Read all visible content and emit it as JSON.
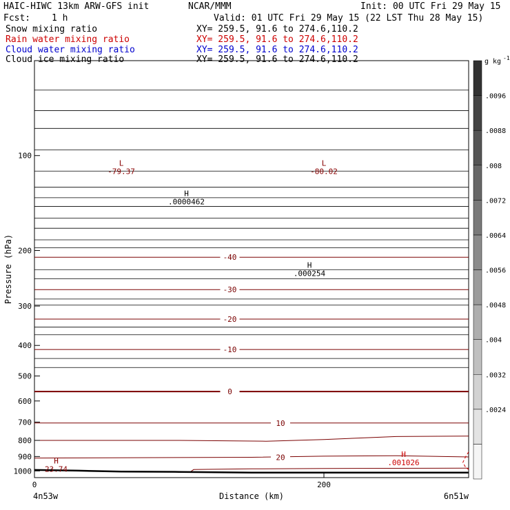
{
  "header": {
    "title_left": "HAIC-HIWC 13km ARW-GFS init",
    "org": "NCAR/MMM",
    "init": "Init: 00 UTC Fri 29 May 15",
    "fcst_label": "Fcst:",
    "fcst_value": "1 h",
    "valid": "Valid: 01 UTC Fri 29 May 15 (22 LST Thu 28 May 15)",
    "fields": [
      {
        "name": "Snow mixing ratio",
        "xy": "XY= 259.5, 91.6 to 274.6,110.2",
        "color": "#000000"
      },
      {
        "name": "Rain water mixing ratio",
        "xy": "XY= 259.5, 91.6 to 274.6,110.2",
        "color": "#cc0000"
      },
      {
        "name": "Cloud water mixing ratio",
        "xy": "XY= 259.5, 91.6 to 274.6,110.2",
        "color": "#0000cc"
      },
      {
        "name": "Cloud ice mixing ratio",
        "xy": "XY= 259.5, 91.6 to 274.6,110.2",
        "color": "#000000"
      }
    ]
  },
  "chart_data": {
    "type": "line",
    "xlabel": "Distance (km)",
    "ylabel": "Pressure (hPa)",
    "xlim": [
      0,
      300
    ],
    "ylim": [
      1050,
      50
    ],
    "y_scale": "log",
    "x_ticks": [
      0,
      200
    ],
    "x_end_labels": [
      "4n53w",
      "6n51w"
    ],
    "y_ticks": [
      100,
      200,
      300,
      400,
      500,
      600,
      700,
      800,
      900,
      1000
    ],
    "temperature_contours": [
      {
        "label": "-40",
        "points": [
          [
            0,
            210
          ],
          [
            300,
            210
          ]
        ]
      },
      {
        "label": "-30",
        "points": [
          [
            0,
            266
          ],
          [
            300,
            266
          ]
        ]
      },
      {
        "label": "-20",
        "points": [
          [
            0,
            330
          ],
          [
            300,
            330
          ]
        ]
      },
      {
        "label": "-10",
        "points": [
          [
            0,
            412
          ],
          [
            300,
            412
          ]
        ]
      },
      {
        "label": "0",
        "points": [
          [
            0,
            560
          ],
          [
            150,
            560
          ],
          [
            300,
            560
          ]
        ]
      },
      {
        "label": "10",
        "points": [
          [
            0,
            705
          ],
          [
            150,
            705
          ],
          [
            200,
            705
          ],
          [
            300,
            705
          ]
        ]
      },
      {
        "label": "",
        "points": [
          [
            0,
            800
          ],
          [
            100,
            800
          ],
          [
            160,
            805
          ],
          [
            200,
            795
          ],
          [
            250,
            778
          ],
          [
            300,
            775
          ]
        ]
      },
      {
        "label": "20",
        "points": [
          [
            0,
            910
          ],
          [
            150,
            905
          ],
          [
            200,
            898
          ],
          [
            250,
            895
          ],
          [
            300,
            903
          ]
        ]
      },
      {
        "label": "",
        "points": [
          [
            108,
            1005
          ],
          [
            110,
            990
          ],
          [
            150,
            985
          ],
          [
            200,
            982
          ],
          [
            300,
            980
          ]
        ]
      }
    ],
    "unlabeled_levels": [
      62,
      72,
      82,
      96,
      112,
      126,
      136,
      145,
      158,
      170,
      185,
      196,
      230,
      246,
      285,
      298,
      350,
      370,
      440,
      470
    ],
    "terrain": {
      "points": [
        [
          0,
          993
        ],
        [
          30,
          998
        ],
        [
          60,
          1005
        ],
        [
          100,
          1007
        ],
        [
          150,
          1012
        ],
        [
          300,
          1012
        ]
      ]
    },
    "cloud_water_contour": {
      "points": [
        [
          300,
          870
        ],
        [
          298,
          900
        ],
        [
          296,
          940
        ],
        [
          298,
          975
        ],
        [
          300,
          990
        ]
      ]
    },
    "extrema": [
      {
        "kind": "L",
        "value": "-79.37",
        "x": 60,
        "p": 112,
        "color": "#880000"
      },
      {
        "kind": "L",
        "value": "-80.02",
        "x": 200,
        "p": 112,
        "color": "#880000"
      },
      {
        "kind": "H",
        "value": ".0000462",
        "x": 105,
        "p": 140,
        "color": "#000000"
      },
      {
        "kind": "H",
        "value": ".000254",
        "x": 190,
        "p": 236,
        "color": "#000000"
      },
      {
        "kind": "H",
        "value": ".001026",
        "x": 255,
        "p": 940,
        "color": "#cc0000"
      },
      {
        "kind": "H",
        "value": "23.74",
        "x": 15,
        "p": 985,
        "color": "#880000"
      }
    ],
    "colorbar": {
      "unit": "g kg",
      "unit_exp": "-1",
      "ticks": [
        ".0024",
        ".0032",
        ".004",
        ".0048",
        ".0056",
        ".0064",
        ".0072",
        ".008",
        ".0088",
        ".0096"
      ]
    }
  }
}
